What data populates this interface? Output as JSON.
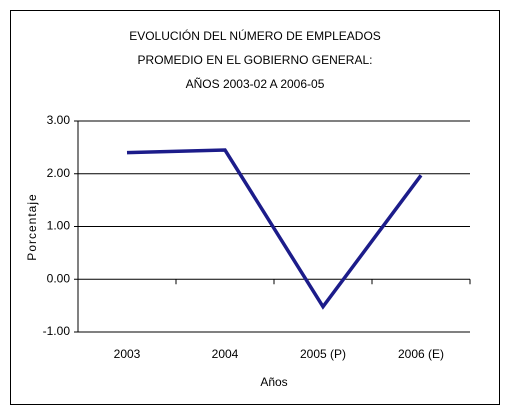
{
  "chart_data": {
    "type": "line",
    "title": [
      "EVOLUCIÓN DEL NÚMERO DE EMPLEADOS",
      "PROMEDIO EN EL GOBIERNO GENERAL:",
      "AÑOS 2003-02 A 2006-05"
    ],
    "x_label": "Años",
    "y_label": "Porcentaje",
    "categories": [
      "2003",
      "2004",
      "2005 (P)",
      "2006 (E)"
    ],
    "series": [
      {
        "color": "#1c1c8a",
        "values": [
          2.4,
          2.45,
          -0.52,
          1.97
        ]
      }
    ],
    "ylim": [
      -1,
      3
    ],
    "yticks": [
      {
        "value": -1,
        "label": "-1.00"
      },
      {
        "value": 0,
        "label": "0.00"
      },
      {
        "value": 1,
        "label": "1.00"
      },
      {
        "value": 2,
        "label": "2.00"
      },
      {
        "value": 3,
        "label": "3.00"
      }
    ],
    "grid": true
  }
}
